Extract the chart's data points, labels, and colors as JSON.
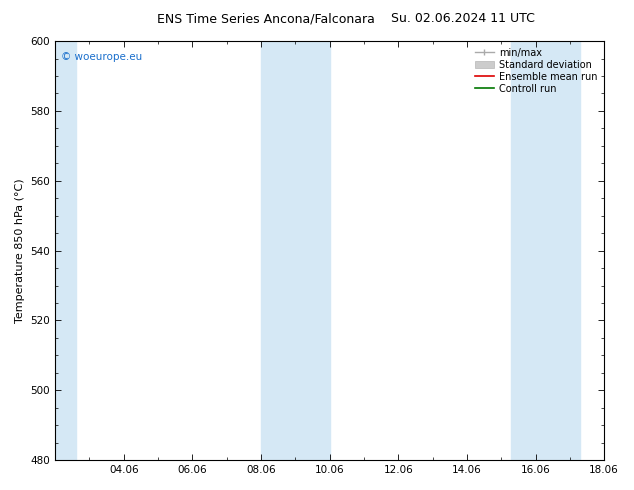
{
  "title": "ENS Time Series Ancona/Falconara",
  "title2": "Su. 02.06.2024 11 UTC",
  "ylabel": "Temperature 850 hPa (°C)",
  "ylim": [
    480,
    600
  ],
  "yticks": [
    480,
    500,
    520,
    540,
    560,
    580,
    600
  ],
  "xtick_labels": [
    "04.06",
    "06.06",
    "08.06",
    "10.06",
    "12.06",
    "14.06",
    "16.06",
    "18.06"
  ],
  "xtick_positions": [
    2,
    4,
    6,
    8,
    10,
    12,
    14,
    16
  ],
  "xlim": [
    0,
    16
  ],
  "shaded_bands": [
    {
      "xmin": 0,
      "xmax": 0.6
    },
    {
      "xmin": 6,
      "xmax": 8
    },
    {
      "xmin": 13.3,
      "xmax": 15.3
    }
  ],
  "shaded_color": "#d5e8f5",
  "watermark": "© woeurope.eu",
  "watermark_color": "#1a6fcc",
  "legend_items": [
    {
      "label": "min/max",
      "color": "#aaaaaa"
    },
    {
      "label": "Standard deviation",
      "color": "#cccccc"
    },
    {
      "label": "Ensemble mean run",
      "color": "#dd0000"
    },
    {
      "label": "Controll run",
      "color": "#007700"
    }
  ],
  "bg_color": "#ffffff",
  "plot_bg_color": "#ffffff",
  "title_fontsize": 9,
  "axis_fontsize": 8,
  "tick_fontsize": 7.5,
  "legend_fontsize": 7
}
